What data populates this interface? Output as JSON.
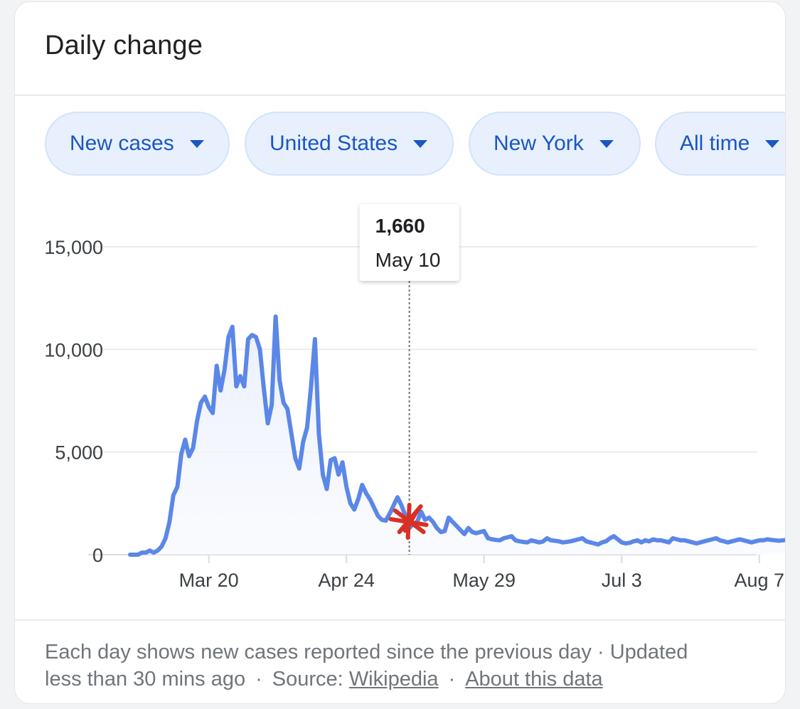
{
  "card": {
    "title": "Daily change"
  },
  "filters": [
    {
      "label": "New cases"
    },
    {
      "label": "United States"
    },
    {
      "label": "New York"
    },
    {
      "label": "All time"
    }
  ],
  "tooltip": {
    "value": "1,660",
    "date": "May 10"
  },
  "footer": {
    "line1": "Each day shows new cases reported since the previous day · Updated",
    "line2_prefix": "less than 30 mins ago",
    "separator": "·",
    "source_label": "Source:",
    "source_link": "Wikipedia",
    "about_link": "About this data"
  },
  "colors": {
    "line": "#5b87e8",
    "accent": "#1a56c4",
    "marker": "#d93025"
  },
  "chart_data": {
    "type": "area",
    "title": "",
    "xlabel": "",
    "ylabel": "",
    "ylim": [
      0,
      15000
    ],
    "yticks": [
      0,
      5000,
      10000,
      15000
    ],
    "ytick_labels": [
      "0",
      "5,000",
      "10,000",
      "15,000"
    ],
    "xticks": [
      {
        "label": "Mar 20",
        "day": 20
      },
      {
        "label": "Apr 24",
        "day": 55
      },
      {
        "label": "May 29",
        "day": 90
      },
      {
        "label": "Jul 3",
        "day": 125
      },
      {
        "label": "Aug 7",
        "day": 160
      }
    ],
    "x_start": "Mar 1",
    "x_end": "Aug 9",
    "highlight": {
      "day": 71,
      "value": 1660
    },
    "grid": true,
    "series": [
      {
        "values": [
          0,
          0,
          0,
          100,
          100,
          200,
          100,
          200,
          400,
          800,
          1600,
          2900,
          3300,
          4900,
          5600,
          4800,
          5200,
          6500,
          7400,
          7700,
          7200,
          6900,
          9200,
          8000,
          9000,
          10600,
          11100,
          8200,
          8700,
          8200,
          10500,
          10700,
          10600,
          10000,
          8100,
          6400,
          7300,
          11600,
          8500,
          7400,
          7100,
          5900,
          4700,
          4200,
          5500,
          6200,
          8200,
          10500,
          5900,
          3900,
          3200,
          4600,
          4700,
          3900,
          4500,
          3300,
          2500,
          2200,
          2700,
          3400,
          3000,
          2700,
          2300,
          1900,
          1700,
          1660,
          2000,
          2400,
          2800,
          2400,
          1900,
          1300,
          1500,
          1600,
          2100,
          1700,
          1800,
          1600,
          1300,
          1100,
          1150,
          1800,
          1600,
          1400,
          1200,
          1000,
          1300,
          1100,
          1050,
          1100,
          1150,
          800,
          750,
          720,
          700,
          800,
          850,
          900,
          700,
          650,
          620,
          600,
          700,
          650,
          600,
          640,
          800,
          700,
          680,
          650,
          600,
          620,
          650,
          700,
          750,
          800,
          650,
          600,
          550,
          500,
          600,
          650,
          800,
          900,
          750,
          600,
          550,
          580,
          650,
          700,
          600,
          700,
          650,
          750,
          700,
          700,
          650,
          600,
          800,
          750,
          700,
          700,
          650,
          600,
          550,
          600,
          650,
          700,
          750,
          800,
          700,
          650,
          600,
          650,
          700,
          750,
          700,
          650,
          600,
          650,
          700,
          700,
          750,
          720,
          700,
          680,
          700,
          720,
          700,
          690
        ]
      }
    ]
  }
}
